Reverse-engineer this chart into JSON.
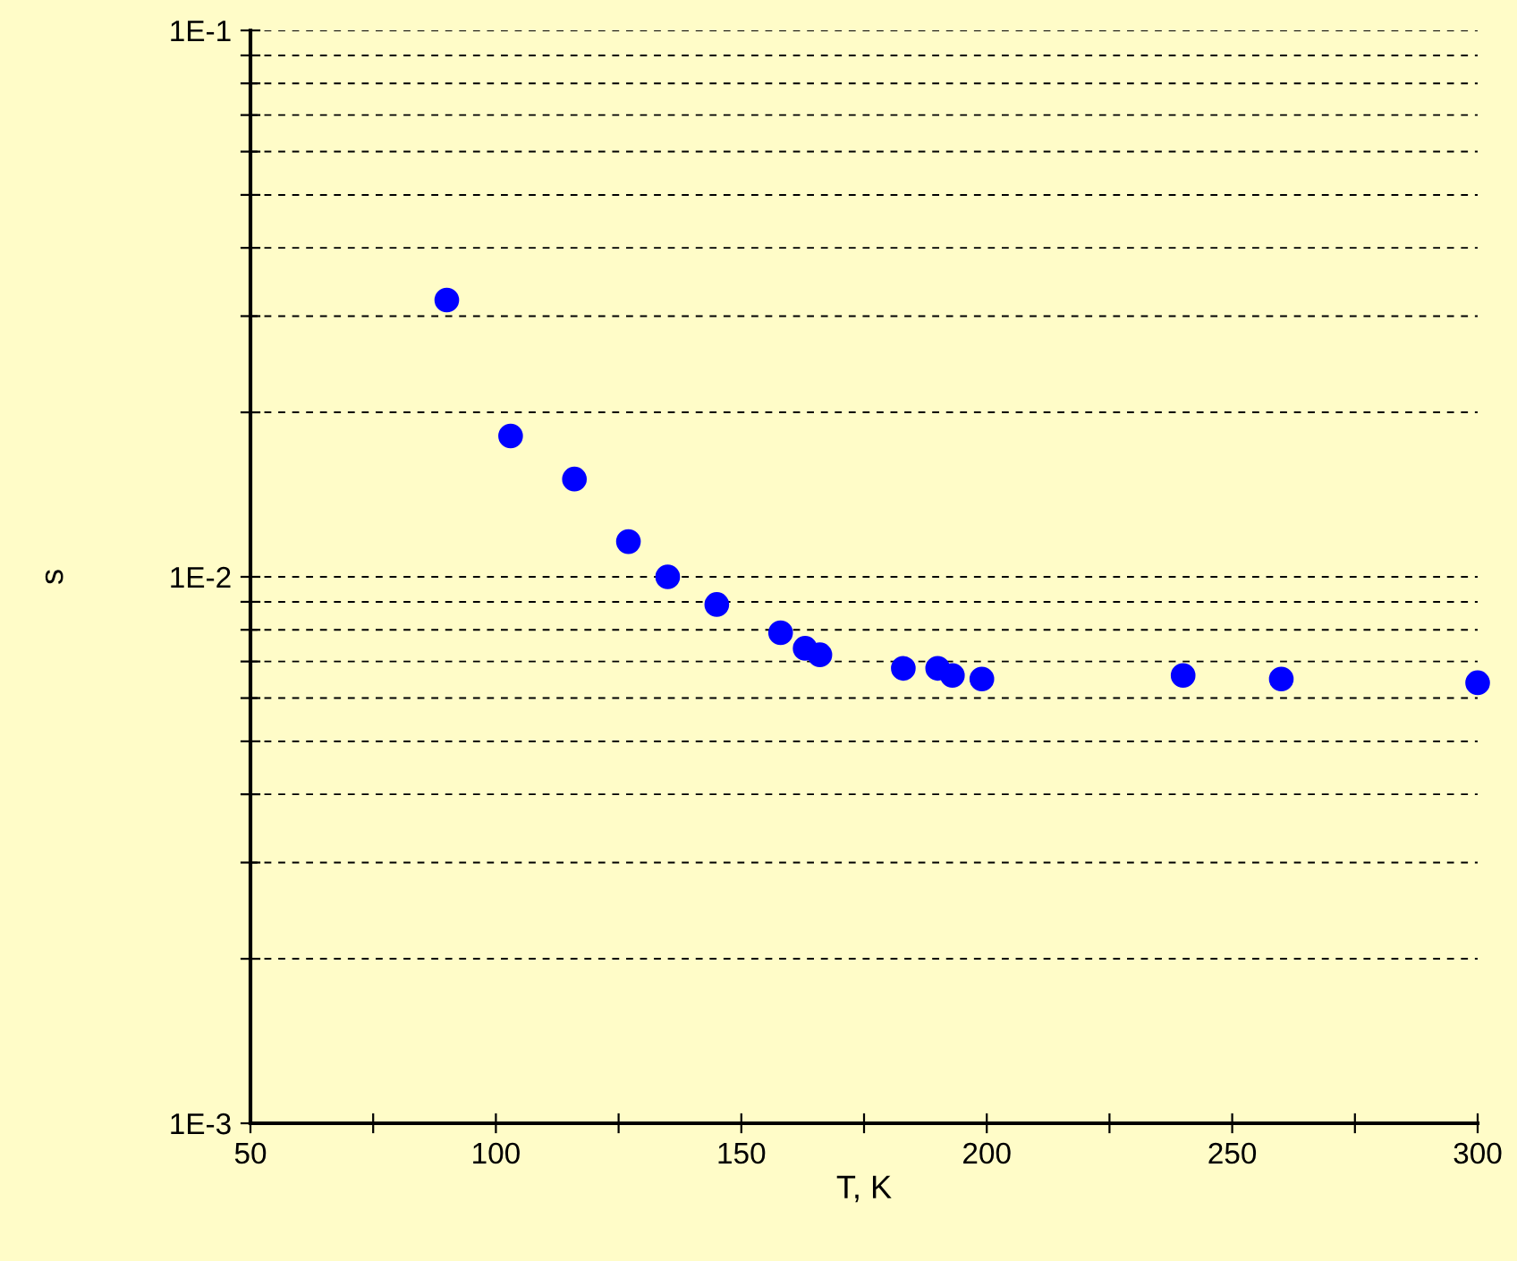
{
  "chart_data": {
    "type": "scatter",
    "xlabel": "T, K",
    "ylabel": "s",
    "log": "y",
    "marker": "circle",
    "grid": "y",
    "x": [
      90,
      103,
      116,
      127,
      135,
      145,
      158,
      163,
      166,
      183,
      190,
      193,
      199,
      240,
      260,
      300
    ],
    "series": [
      {
        "color": "#0000ff",
        "values": [
          0.0321,
          0.0181,
          0.0151,
          0.0116,
          0.01,
          0.0089,
          0.0079,
          0.0074,
          0.0072,
          0.0068,
          0.0068,
          0.0066,
          0.0065,
          0.0066,
          0.0065,
          0.0064
        ]
      }
    ],
    "xlim": [
      50,
      300
    ],
    "ylim": [
      0.001,
      0.1
    ],
    "xticks": [
      50,
      {
        "value": 75,
        "label": null
      },
      100,
      {
        "value": 125,
        "label": null
      },
      150,
      {
        "value": 175,
        "label": null
      },
      200,
      {
        "value": 225,
        "label": null
      },
      250,
      {
        "value": 275,
        "label": null
      },
      300
    ],
    "yticks": [
      {
        "value": 0.001,
        "label": "1E-3"
      },
      {
        "value": 0.002,
        "label": null
      },
      {
        "value": 0.003,
        "label": null
      },
      {
        "value": 0.004,
        "label": null
      },
      {
        "value": 0.005,
        "label": null
      },
      {
        "value": 0.006,
        "label": null
      },
      {
        "value": 0.007,
        "label": null
      },
      {
        "value": 0.008,
        "label": null
      },
      {
        "value": 0.009,
        "label": null
      },
      {
        "value": 0.01,
        "label": "1E-2"
      },
      {
        "value": 0.02,
        "label": null
      },
      {
        "value": 0.03,
        "label": null
      },
      {
        "value": 0.04,
        "label": null
      },
      {
        "value": 0.05,
        "label": null
      },
      {
        "value": 0.06,
        "label": null
      },
      {
        "value": 0.07,
        "label": null
      },
      {
        "value": 0.08,
        "label": null
      },
      {
        "value": 0.09,
        "label": null
      },
      {
        "value": 0.1,
        "label": "1E-1"
      }
    ]
  }
}
